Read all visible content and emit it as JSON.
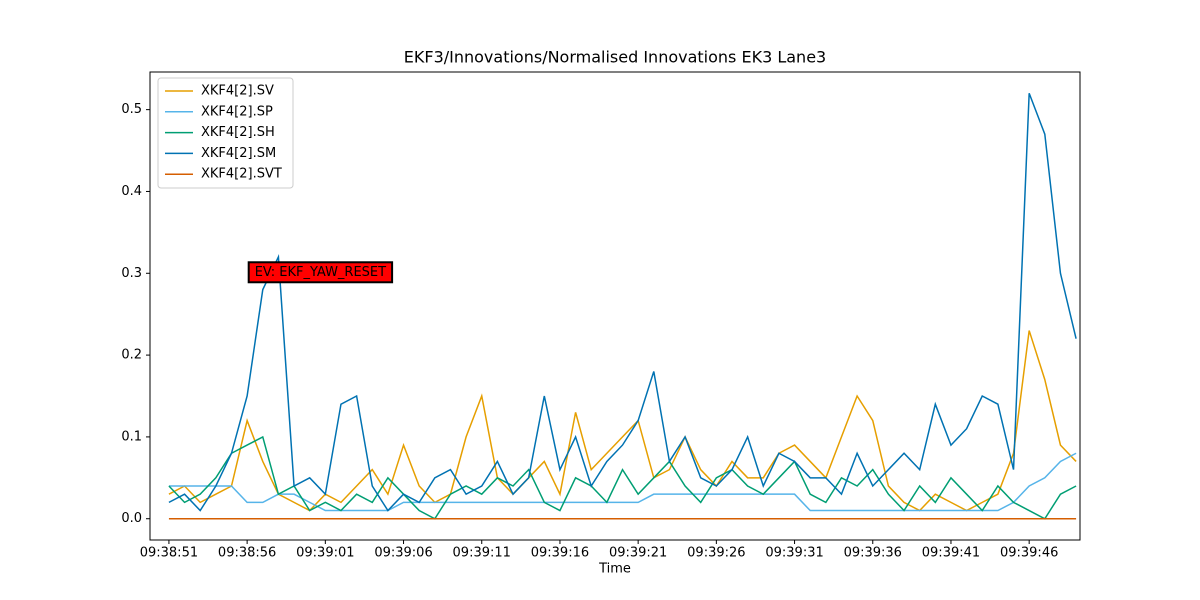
{
  "chart_data": {
    "type": "line",
    "title": "EKF3/Innovations/Normalised Innovations EK3 Lane3",
    "x_label": "Time",
    "x": [
      0,
      1,
      2,
      3,
      4,
      5,
      6,
      7,
      8,
      9,
      10,
      11,
      12,
      13,
      14,
      15,
      16,
      17,
      18,
      19,
      20,
      21,
      22,
      23,
      24,
      25,
      26,
      27,
      28,
      29,
      30,
      31,
      32,
      33,
      34,
      35,
      36,
      37,
      38,
      39,
      40,
      41,
      42,
      43,
      44,
      45,
      46,
      47,
      48,
      49,
      50,
      51,
      52,
      53,
      54,
      55,
      56,
      57,
      58
    ],
    "series": [
      {
        "name": "XKF4[2].SV",
        "color": "#e69f00",
        "values": [
          0.03,
          0.04,
          0.02,
          0.03,
          0.04,
          0.12,
          0.07,
          0.03,
          0.02,
          0.01,
          0.03,
          0.02,
          0.04,
          0.06,
          0.03,
          0.09,
          0.04,
          0.02,
          0.03,
          0.1,
          0.15,
          0.05,
          0.03,
          0.05,
          0.07,
          0.03,
          0.13,
          0.06,
          0.08,
          0.1,
          0.12,
          0.05,
          0.06,
          0.1,
          0.06,
          0.04,
          0.07,
          0.05,
          0.05,
          0.08,
          0.09,
          0.07,
          0.05,
          0.1,
          0.15,
          0.12,
          0.04,
          0.02,
          0.01,
          0.03,
          0.02,
          0.01,
          0.02,
          0.03,
          0.08,
          0.23,
          0.17,
          0.09,
          0.07
        ]
      },
      {
        "name": "XKF4[2].SP",
        "color": "#56b4e9",
        "values": [
          0.04,
          0.04,
          0.04,
          0.04,
          0.04,
          0.02,
          0.02,
          0.03,
          0.03,
          0.02,
          0.01,
          0.01,
          0.01,
          0.01,
          0.01,
          0.02,
          0.02,
          0.02,
          0.02,
          0.02,
          0.02,
          0.02,
          0.02,
          0.02,
          0.02,
          0.02,
          0.02,
          0.02,
          0.02,
          0.02,
          0.02,
          0.03,
          0.03,
          0.03,
          0.03,
          0.03,
          0.03,
          0.03,
          0.03,
          0.03,
          0.03,
          0.01,
          0.01,
          0.01,
          0.01,
          0.01,
          0.01,
          0.01,
          0.01,
          0.01,
          0.01,
          0.01,
          0.01,
          0.01,
          0.02,
          0.04,
          0.05,
          0.07,
          0.08
        ]
      },
      {
        "name": "XKF4[2].SH",
        "color": "#009e73",
        "values": [
          0.04,
          0.02,
          0.03,
          0.05,
          0.08,
          0.09,
          0.1,
          0.03,
          0.04,
          0.01,
          0.02,
          0.01,
          0.03,
          0.02,
          0.05,
          0.03,
          0.01,
          0.0,
          0.03,
          0.04,
          0.03,
          0.05,
          0.04,
          0.06,
          0.02,
          0.01,
          0.05,
          0.04,
          0.02,
          0.06,
          0.03,
          0.05,
          0.07,
          0.04,
          0.02,
          0.05,
          0.06,
          0.04,
          0.03,
          0.05,
          0.07,
          0.03,
          0.02,
          0.05,
          0.04,
          0.06,
          0.03,
          0.01,
          0.04,
          0.02,
          0.05,
          0.03,
          0.01,
          0.04,
          0.02,
          0.01,
          0.0,
          0.03,
          0.04
        ]
      },
      {
        "name": "XKF4[2].SM",
        "color": "#0072b2",
        "values": [
          0.02,
          0.03,
          0.01,
          0.04,
          0.08,
          0.15,
          0.28,
          0.32,
          0.04,
          0.05,
          0.03,
          0.14,
          0.15,
          0.04,
          0.01,
          0.03,
          0.02,
          0.05,
          0.06,
          0.03,
          0.04,
          0.07,
          0.03,
          0.05,
          0.15,
          0.06,
          0.1,
          0.04,
          0.07,
          0.09,
          0.12,
          0.18,
          0.07,
          0.1,
          0.05,
          0.04,
          0.06,
          0.1,
          0.04,
          0.08,
          0.07,
          0.05,
          0.05,
          0.03,
          0.08,
          0.04,
          0.06,
          0.08,
          0.06,
          0.14,
          0.09,
          0.11,
          0.15,
          0.14,
          0.06,
          0.52,
          0.47,
          0.3,
          0.22
        ]
      },
      {
        "name": "XKF4[2].SVT",
        "color": "#d55e00",
        "values": [
          0,
          0,
          0,
          0,
          0,
          0,
          0,
          0,
          0,
          0,
          0,
          0,
          0,
          0,
          0,
          0,
          0,
          0,
          0,
          0,
          0,
          0,
          0,
          0,
          0,
          0,
          0,
          0,
          0,
          0,
          0,
          0,
          0,
          0,
          0,
          0,
          0,
          0,
          0,
          0,
          0,
          0,
          0,
          0,
          0,
          0,
          0,
          0,
          0,
          0,
          0,
          0,
          0,
          0,
          0,
          0,
          0,
          0,
          0
        ]
      }
    ],
    "xlim": [
      -1.21,
      58.25
    ],
    "xticks": [
      {
        "value": 0,
        "label": "09:38:51"
      },
      {
        "value": 5,
        "label": "09:38:56"
      },
      {
        "value": 10,
        "label": "09:39:01"
      },
      {
        "value": 15,
        "label": "09:39:06"
      },
      {
        "value": 20,
        "label": "09:39:11"
      },
      {
        "value": 25,
        "label": "09:39:16"
      },
      {
        "value": 30,
        "label": "09:39:21"
      },
      {
        "value": 35,
        "label": "09:39:26"
      },
      {
        "value": 40,
        "label": "09:39:31"
      },
      {
        "value": 45,
        "label": "09:39:36"
      },
      {
        "value": 50,
        "label": "09:39:41"
      },
      {
        "value": 55,
        "label": "09:39:46"
      }
    ],
    "ylim": [
      -0.026,
      0.546
    ],
    "yticks": [
      {
        "value": 0,
        "label": "0.0"
      },
      0.1,
      0.2,
      0.3,
      0.4,
      0.5
    ],
    "legend": "upper left",
    "annotations": [
      {
        "text": "EV: EKF_YAW_RESET",
        "x": 5.1,
        "y": 0.3,
        "color": "#ff0000"
      }
    ]
  }
}
